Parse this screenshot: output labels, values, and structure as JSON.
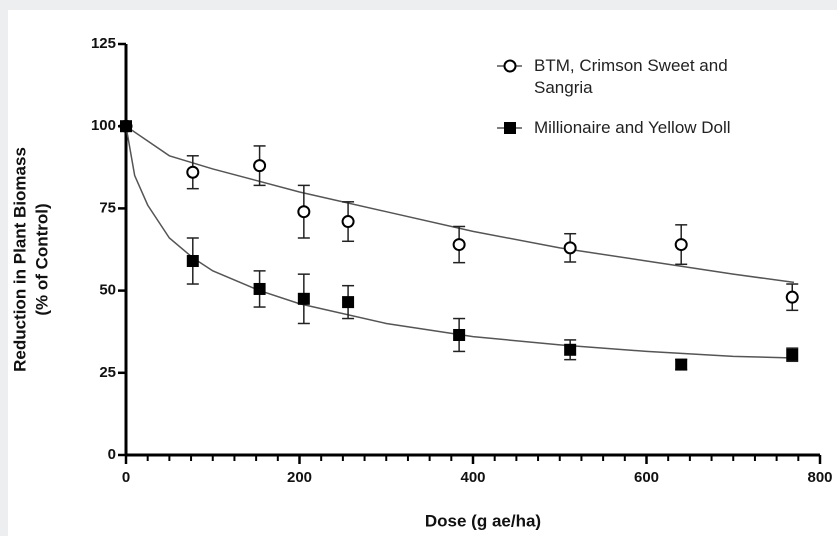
{
  "chart_data": {
    "type": "scatter",
    "xlabel": "Dose (g ae/ha)",
    "ylabel": [
      "Reduction in Plant Biomass",
      "(% of Control)"
    ],
    "xlim": [
      0,
      800
    ],
    "xticks": [
      0,
      200,
      400,
      600,
      800
    ],
    "xminorticks": [
      25,
      50,
      75,
      100,
      125,
      150,
      175,
      225,
      250,
      275,
      300,
      325,
      350,
      375,
      425,
      450,
      475,
      500,
      525,
      550,
      575,
      625,
      650,
      675,
      700,
      725,
      750,
      775
    ],
    "ylim": [
      0,
      125
    ],
    "yticks": [
      0,
      25,
      50,
      75,
      100,
      125
    ],
    "legend": "top-right",
    "series": [
      {
        "name": "BTM, Crimson Sweet and Sangria",
        "color": "#000000",
        "marker": "open-circle",
        "x": [
          0,
          77,
          154,
          205,
          256,
          384,
          512,
          640,
          768
        ],
        "values": [
          100,
          86,
          88,
          74,
          71,
          64,
          63,
          64,
          48
        ],
        "errors": [
          0,
          5,
          6,
          8,
          6,
          5.5,
          4.3,
          6,
          4
        ],
        "fit": {
          "x": [
            0,
            50,
            100,
            200,
            300,
            400,
            500,
            600,
            700,
            770
          ],
          "values": [
            100,
            91,
            87,
            80,
            74,
            68,
            63,
            59,
            55,
            52.5
          ]
        }
      },
      {
        "name": "Millionaire and Yellow Doll",
        "color": "#000000",
        "marker": "filled-square",
        "x": [
          0,
          77,
          154,
          205,
          256,
          384,
          512,
          640,
          768
        ],
        "values": [
          100,
          59,
          50.5,
          47.5,
          46.5,
          36.5,
          32,
          27.5,
          30.5
        ],
        "errors": [
          0,
          7,
          5.5,
          7.5,
          5,
          5,
          3,
          1.5,
          2
        ],
        "fit": {
          "x": [
            0,
            10,
            25,
            50,
            77,
            100,
            154,
            200,
            300,
            400,
            500,
            600,
            700,
            770
          ],
          "values": [
            100,
            85,
            76,
            66,
            60,
            56,
            50,
            46,
            40,
            36,
            33.5,
            31.5,
            30,
            29.5
          ]
        }
      }
    ]
  }
}
